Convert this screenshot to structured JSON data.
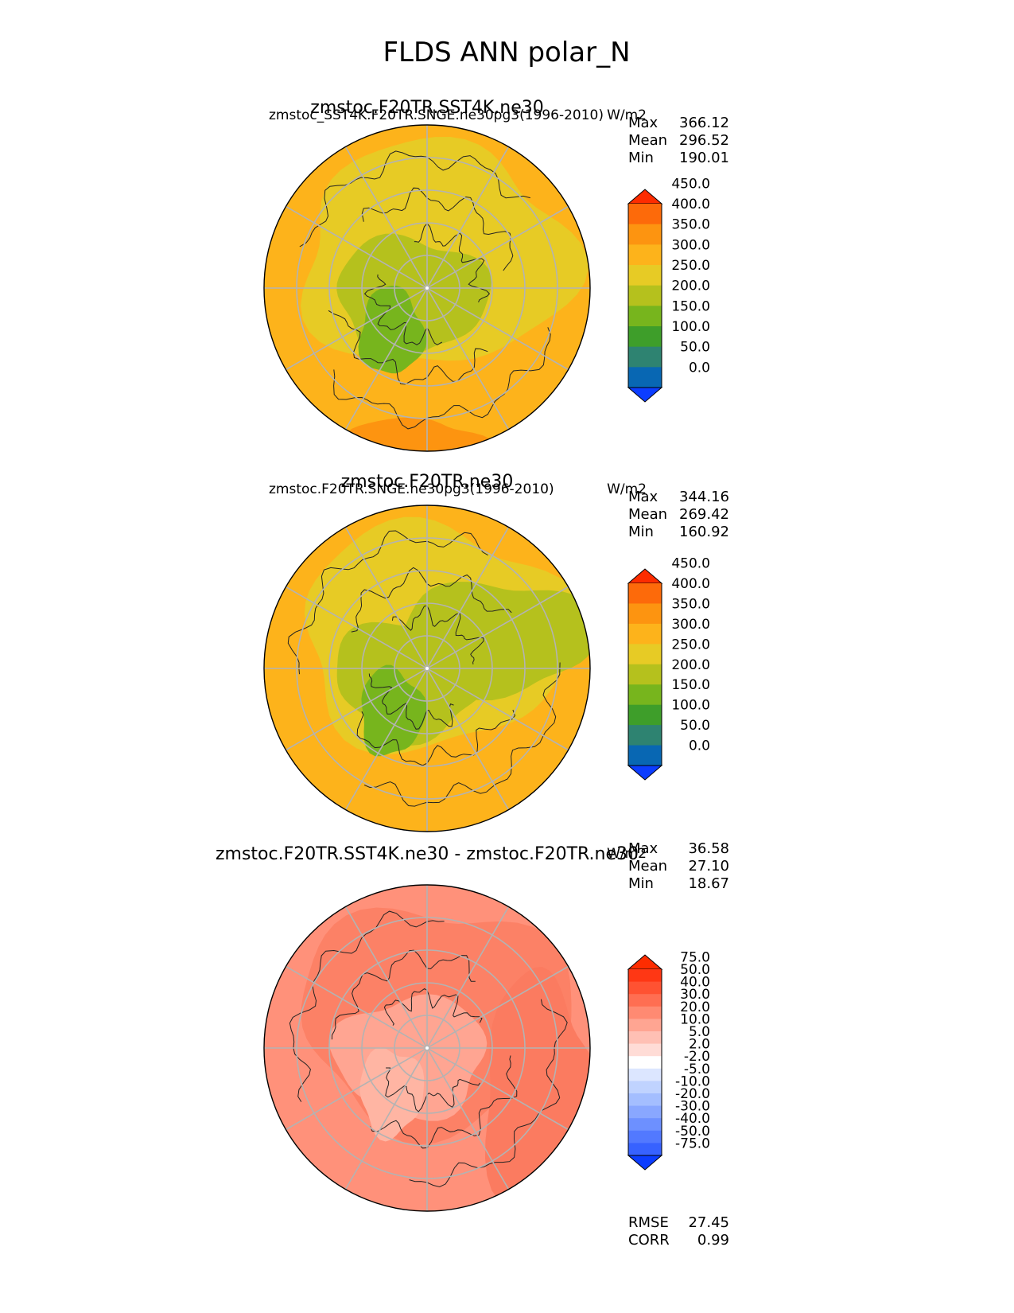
{
  "figure_title": "FLDS ANN polar_N",
  "colors": {
    "ocean_outline": "#000000",
    "grid": "#b3b3b3",
    "coast": "#222222"
  },
  "chart_data": [
    {
      "type": "heatmap",
      "projection": "north-polar-stereographic",
      "title": "zmstoc.F20TR.SST4K.ne30",
      "left_label": "zmstoc_SST4K.F20TR.SNGE.ne30pg3(1996-2010)",
      "right_label": "W/m2",
      "stats": [
        {
          "label": "Max",
          "value": "366.12"
        },
        {
          "label": "Mean",
          "value": "296.52"
        },
        {
          "label": "Min",
          "value": "190.01"
        }
      ],
      "colorbar": {
        "levels": [
          "0.0",
          "50.0",
          "100.0",
          "150.0",
          "200.0",
          "250.0",
          "300.0",
          "350.0",
          "400.0",
          "450.0"
        ],
        "colors": [
          "#0c3dff",
          "#0867b3",
          "#2e8371",
          "#3e9e2a",
          "#77b51d",
          "#b5c11d",
          "#e7cb25",
          "#fdb31b",
          "#fd9410",
          "#fd6a0a",
          "#fd2c00"
        ]
      },
      "field": {
        "base": "#fdb31b",
        "mid": "#e7cb25",
        "inner": "#b5c11d",
        "core": "#77b51d",
        "warm": "#fd9410"
      }
    },
    {
      "type": "heatmap",
      "projection": "north-polar-stereographic",
      "title": "zmstoc.F20TR.ne30",
      "left_label": "zmstoc.F20TR.SNGE.ne30pg3(1996-2010)",
      "right_label": "W/m2",
      "stats": [
        {
          "label": "Max",
          "value": "344.16"
        },
        {
          "label": "Mean",
          "value": "269.42"
        },
        {
          "label": "Min",
          "value": "160.92"
        }
      ],
      "colorbar": {
        "levels": [
          "0.0",
          "50.0",
          "100.0",
          "150.0",
          "200.0",
          "250.0",
          "300.0",
          "350.0",
          "400.0",
          "450.0"
        ],
        "colors": [
          "#0c3dff",
          "#0867b3",
          "#2e8371",
          "#3e9e2a",
          "#77b51d",
          "#b5c11d",
          "#e7cb25",
          "#fdb31b",
          "#fd9410",
          "#fd6a0a",
          "#fd2c00"
        ]
      },
      "field": {
        "base": "#fdb31b",
        "mid": "#e7cb25",
        "inner": "#b5c11d",
        "core": "#77b51d",
        "warm": "#fdb31b"
      }
    },
    {
      "type": "heatmap",
      "projection": "north-polar-stereographic",
      "title": "zmstoc.F20TR.SST4K.ne30 - zmstoc.F20TR.ne30",
      "left_label": "",
      "right_label": "W/m2",
      "stats": [
        {
          "label": "Max",
          "value": "36.58"
        },
        {
          "label": "Mean",
          "value": "27.10"
        },
        {
          "label": "Min",
          "value": "18.67"
        }
      ],
      "colorbar": {
        "levels": [
          "-75.0",
          "-50.0",
          "-40.0",
          "-30.0",
          "-20.0",
          "-10.0",
          "-5.0",
          "-2.0",
          "2.0",
          "5.0",
          "10.0",
          "20.0",
          "30.0",
          "40.0",
          "50.0",
          "75.0"
        ],
        "colors": [
          "#0c3dff",
          "#3762ff",
          "#5279ff",
          "#6d90ff",
          "#89a7ff",
          "#a4beff",
          "#c0d3ff",
          "#dce6ff",
          "#ffffff",
          "#ffdcd6",
          "#ffc0b4",
          "#ffa592",
          "#ff8a72",
          "#ff6e52",
          "#ff5232",
          "#ff3714",
          "#fd2c00"
        ]
      },
      "field": {
        "base": "#ff917a",
        "mid": "#fc8166",
        "inner": "#ffa592",
        "core": "#ffb5a3",
        "warm": "#fb7b60"
      },
      "metrics": [
        {
          "label": "RMSE",
          "value": "27.45"
        },
        {
          "label": "CORR",
          "value": "0.99"
        }
      ]
    }
  ]
}
